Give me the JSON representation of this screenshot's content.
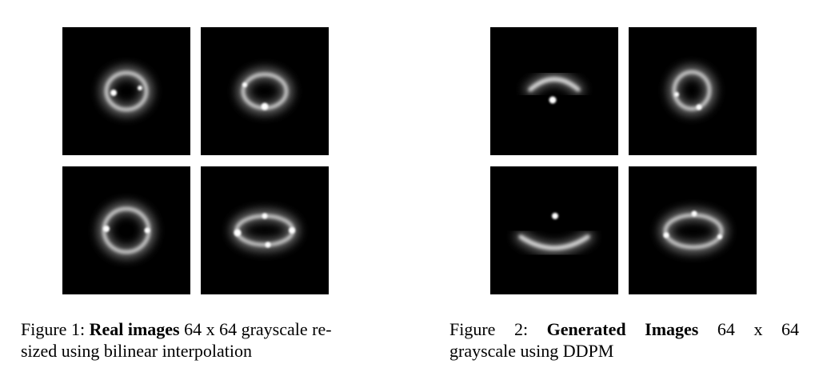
{
  "figures": [
    {
      "caption": {
        "label": "Figure 1:",
        "bold": "Real images",
        "line1_rest": "64 x 64 grayscale re-",
        "line2": "sized using bilinear interpolation"
      }
    },
    {
      "caption": {
        "label": "Figure 2:",
        "bold": "Generated Images",
        "line1_rest": "64 x 64",
        "line2": "grayscale using DDPM"
      }
    }
  ]
}
